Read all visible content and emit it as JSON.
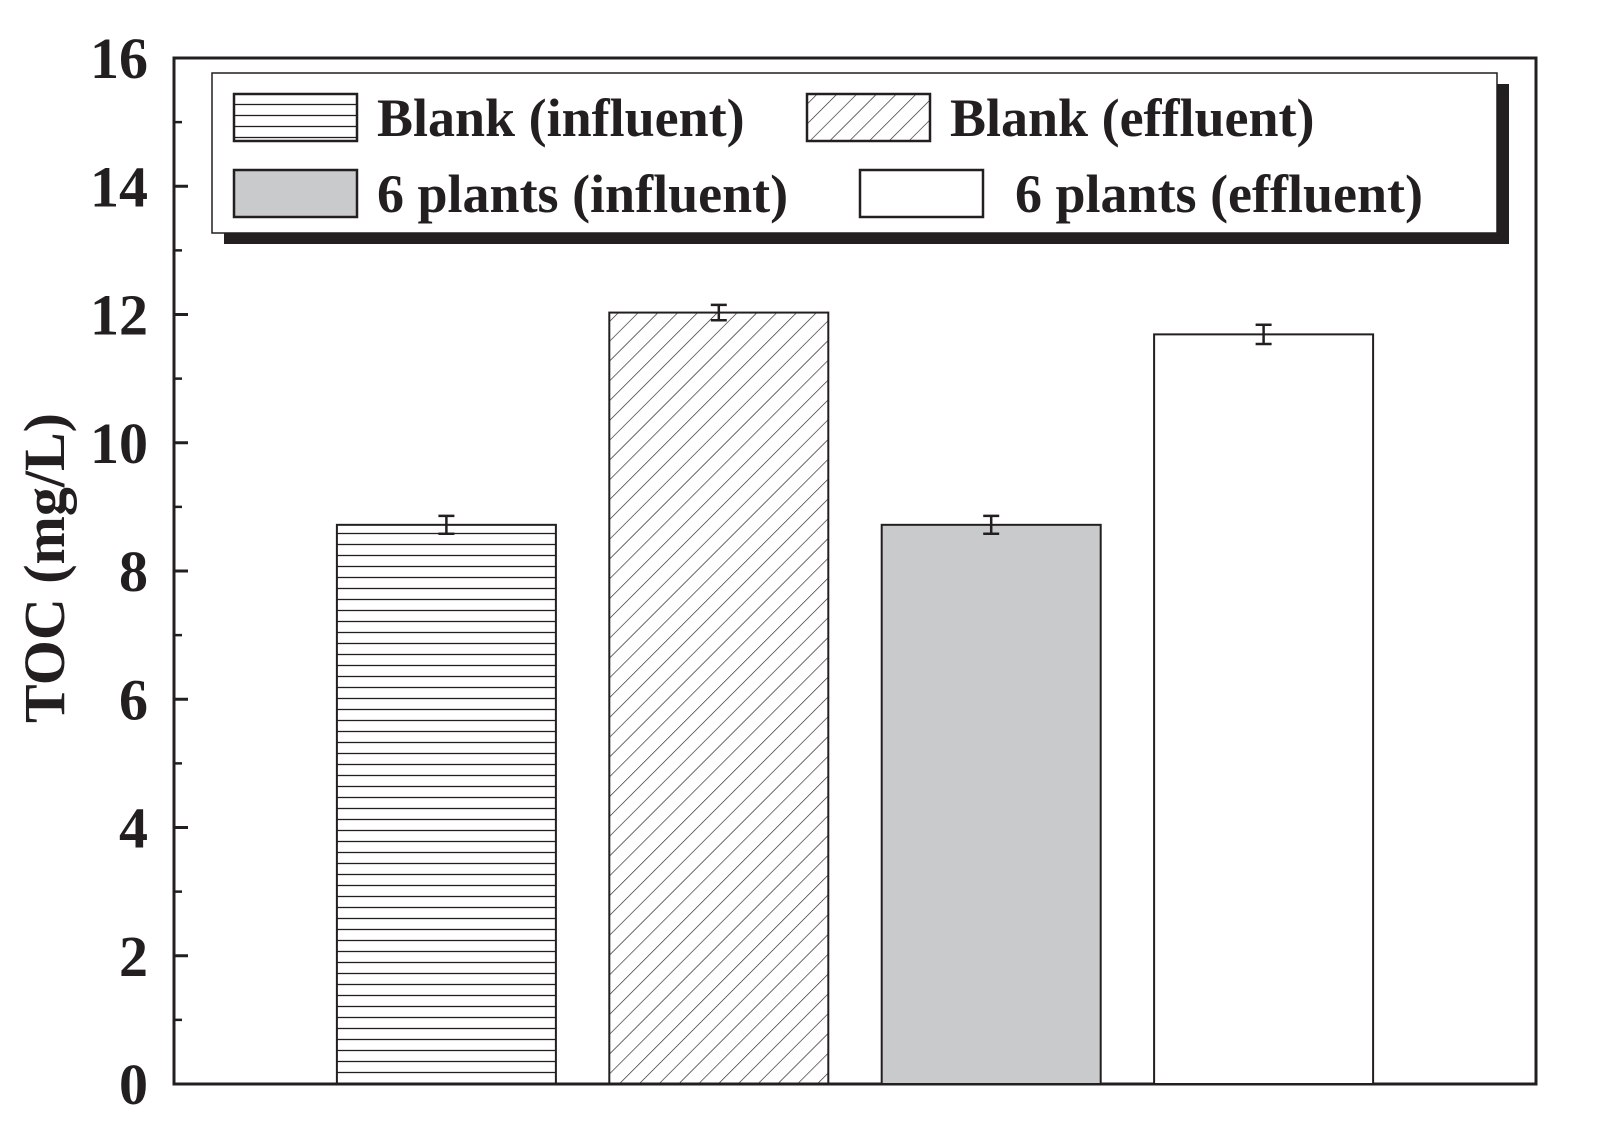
{
  "chart_data": {
    "type": "bar",
    "categories": [
      "Blank (influent)",
      "Blank (effluent)",
      "6 plants (influent)",
      "6 plants (effluent)"
    ],
    "values": [
      8.72,
      12.03,
      8.72,
      11.69
    ],
    "errors": [
      0.14,
      0.12,
      0.14,
      0.15
    ],
    "fills": [
      "horizontal-lines",
      "diagonal-lines",
      "#c9cacc",
      "#ffffff"
    ],
    "title": "",
    "xlabel": "",
    "ylabel": "TOC (mg/L)",
    "ylim": [
      0,
      16
    ],
    "yticks": [
      "0",
      "2",
      "4",
      "6",
      "8",
      "10",
      "12",
      "14",
      "16"
    ],
    "grid": false,
    "legend_position": "top",
    "legend": [
      {
        "label": "Blank (influent)",
        "fill": "horizontal-lines"
      },
      {
        "label": "Blank (effluent)",
        "fill": "diagonal-lines"
      },
      {
        "label": "6 plants (influent)",
        "fill": "#c9cacc"
      },
      {
        "label": "6 plants (effluent)",
        "fill": "#ffffff"
      }
    ]
  },
  "colors": {
    "ink": "#231f20",
    "gray_fill": "#c9cacc"
  }
}
